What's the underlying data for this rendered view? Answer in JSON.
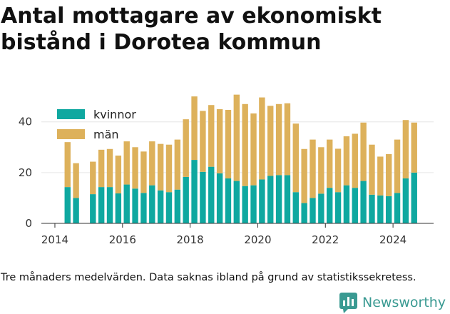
{
  "title": "Antal mottagare av ekonomiskt bistånd i Dorotea kommun",
  "caption": "Tre månaders medelvärden. Data saknas ibland på grund av statistikssekretess.",
  "brand": {
    "name": "Newsworthy",
    "icon": "bar-chart-logo-icon",
    "color": "#3a9a92"
  },
  "chart_data": {
    "type": "bar",
    "stacked": true,
    "title": "Antal mottagare av ekonomiskt bistånd i Dorotea kommun",
    "xlabel": "",
    "ylabel": "",
    "ylim": [
      0,
      52
    ],
    "xlim": [
      2013.6,
      2025.2
    ],
    "y_ticks": [
      0,
      20,
      40
    ],
    "x_ticks": [
      2014,
      2016,
      2018,
      2020,
      2022,
      2024
    ],
    "grid": "horizontal",
    "legend": "top-left",
    "x": [
      2014.375,
      2014.625,
      2015.125,
      2015.375,
      2015.625,
      2015.875,
      2016.125,
      2016.375,
      2016.625,
      2016.875,
      2017.125,
      2017.375,
      2017.625,
      2017.875,
      2018.125,
      2018.375,
      2018.625,
      2018.875,
      2019.125,
      2019.375,
      2019.625,
      2019.875,
      2020.125,
      2020.375,
      2020.625,
      2020.875,
      2021.125,
      2021.375,
      2021.625,
      2021.875,
      2022.125,
      2022.375,
      2022.625,
      2022.875,
      2023.125,
      2023.375,
      2023.625,
      2023.875,
      2024.125,
      2024.375,
      2024.625
    ],
    "series": [
      {
        "name": "kvinnor",
        "color": "#0fa8a0",
        "values": [
          14.3,
          10,
          11.5,
          14.3,
          14.3,
          11.8,
          15.3,
          13.7,
          12,
          15,
          13,
          12.3,
          13.3,
          18.3,
          25,
          20.3,
          22.3,
          19.7,
          17.7,
          16.7,
          14.7,
          15,
          17.3,
          18.7,
          19,
          19,
          12.3,
          8,
          10,
          11.7,
          14,
          12.3,
          15,
          14,
          16.7,
          11.3,
          11,
          10.7,
          12,
          17.7,
          20
        ]
      },
      {
        "name": "män",
        "color": "#ddb15b",
        "values": [
          17.7,
          13.7,
          12.8,
          14.7,
          15,
          14.9,
          17,
          16.3,
          16.3,
          17.3,
          18.3,
          18.7,
          19.7,
          22.7,
          25,
          24,
          24.3,
          25.3,
          27,
          34,
          32.3,
          28.3,
          32.3,
          27.6,
          28,
          28.3,
          27,
          21.3,
          23,
          18.3,
          19,
          17.1,
          19.3,
          21.3,
          23,
          19.7,
          15.3,
          16.6,
          21,
          23,
          19.7
        ]
      }
    ]
  }
}
